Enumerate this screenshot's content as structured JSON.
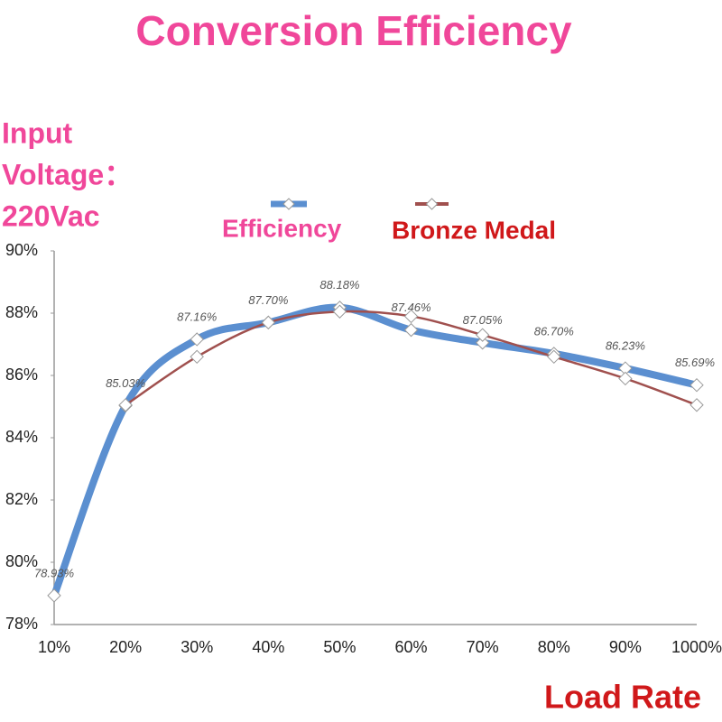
{
  "chart_data": {
    "type": "line",
    "title": "Conversion Efficiency",
    "annotation": [
      "Input",
      "Voltage：",
      "220Vac"
    ],
    "x_label": "Load Rate",
    "categories": [
      "10%",
      "20%",
      "30%",
      "40%",
      "50%",
      "60%",
      "70%",
      "80%",
      "90%",
      "1000%"
    ],
    "series": [
      {
        "name": "Efficiency",
        "color": "#5b8fd0",
        "values": [
          78.93,
          85.03,
          87.16,
          87.7,
          88.18,
          87.46,
          87.05,
          86.7,
          86.23,
          85.69
        ],
        "value_labels": [
          "78.93%",
          "85.03%",
          "87.16%",
          "87.70%",
          "88.18%",
          "87.46%",
          "87.05%",
          "86.70%",
          "86.23%",
          "85.69%"
        ]
      },
      {
        "name": "Bronze Medal",
        "color": "#a0504e",
        "values": [
          null,
          85.05,
          86.6,
          87.7,
          88.05,
          87.9,
          87.3,
          86.6,
          85.9,
          85.05
        ]
      }
    ],
    "ylim": [
      78,
      90
    ],
    "yticks": [
      {
        "value": 78,
        "label": "78%"
      },
      {
        "value": 80,
        "label": "80%"
      },
      {
        "value": 82,
        "label": "82%"
      },
      {
        "value": 84,
        "label": "84%"
      },
      {
        "value": 86,
        "label": "86%"
      },
      {
        "value": 88,
        "label": "88%"
      },
      {
        "value": 90,
        "label": "90%"
      }
    ]
  }
}
